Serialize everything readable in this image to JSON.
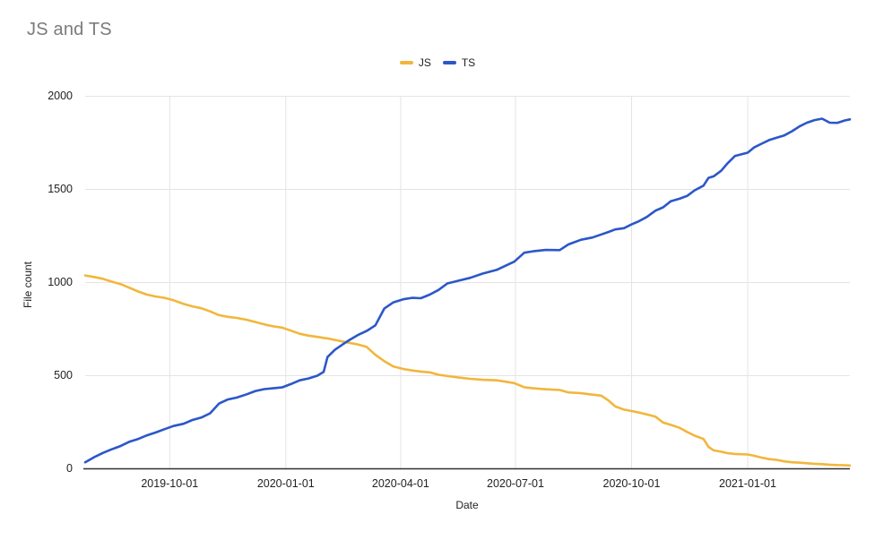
{
  "page": {
    "background": "#ffffff"
  },
  "chart_data": {
    "type": "line",
    "title": "JS and TS",
    "xlabel": "Date",
    "ylabel": "File count",
    "grid": true,
    "legend_position": "top-center",
    "ylim": [
      0,
      2000
    ],
    "y_ticks": [
      0,
      500,
      1000,
      1500,
      2000
    ],
    "x_tick_labels": [
      "2019-10-01",
      "2020-01-01",
      "2020-04-01",
      "2020-07-01",
      "2020-10-01",
      "2021-01-01"
    ],
    "x_range": [
      "2019-07-26",
      "2021-03-23"
    ],
    "colors": {
      "grid": "#e4e4e4",
      "axis": "#303030",
      "title": "#7b7b7b",
      "tick_text": "#222222"
    },
    "x": [
      "2019-07-26",
      "2019-08-02",
      "2019-08-09",
      "2019-08-16",
      "2019-08-23",
      "2019-08-30",
      "2019-09-06",
      "2019-09-13",
      "2019-09-20",
      "2019-09-27",
      "2019-10-04",
      "2019-10-12",
      "2019-10-19",
      "2019-10-26",
      "2019-11-02",
      "2019-11-09",
      "2019-11-16",
      "2019-11-23",
      "2019-12-01",
      "2019-12-08",
      "2019-12-15",
      "2019-12-22",
      "2019-12-29",
      "2020-01-05",
      "2020-01-12",
      "2020-01-19",
      "2020-01-26",
      "2020-01-31",
      "2020-02-03",
      "2020-02-09",
      "2020-02-16",
      "2020-02-20",
      "2020-02-27",
      "2020-03-05",
      "2020-03-12",
      "2020-03-19",
      "2020-03-26",
      "2020-04-03",
      "2020-04-10",
      "2020-04-17",
      "2020-04-24",
      "2020-05-01",
      "2020-05-08",
      "2020-05-17",
      "2020-05-26",
      "2020-06-05",
      "2020-06-16",
      "2020-06-23",
      "2020-06-30",
      "2020-07-08",
      "2020-07-15",
      "2020-07-25",
      "2020-08-05",
      "2020-08-12",
      "2020-08-22",
      "2020-08-31",
      "2020-09-07",
      "2020-09-13",
      "2020-09-18",
      "2020-09-25",
      "2020-10-01",
      "2020-10-07",
      "2020-10-13",
      "2020-10-20",
      "2020-10-26",
      "2020-11-01",
      "2020-11-08",
      "2020-11-14",
      "2020-11-20",
      "2020-11-27",
      "2020-12-01",
      "2020-12-05",
      "2020-12-11",
      "2020-12-16",
      "2020-12-22",
      "2021-01-01",
      "2021-01-06",
      "2021-01-12",
      "2021-01-18",
      "2021-01-24",
      "2021-01-30",
      "2021-02-05",
      "2021-02-11",
      "2021-02-17",
      "2021-02-23",
      "2021-03-01",
      "2021-03-07",
      "2021-03-13",
      "2021-03-19",
      "2021-03-23"
    ],
    "series": [
      {
        "name": "JS",
        "color": "#F2B63C",
        "values": [
          1038,
          1030,
          1020,
          1005,
          992,
          972,
          952,
          935,
          925,
          918,
          905,
          885,
          872,
          862,
          845,
          825,
          816,
          810,
          800,
          788,
          775,
          765,
          758,
          742,
          725,
          715,
          708,
          703,
          700,
          692,
          682,
          677,
          668,
          655,
          612,
          578,
          550,
          536,
          528,
          522,
          518,
          505,
          498,
          490,
          483,
          478,
          475,
          468,
          460,
          438,
          432,
          427,
          423,
          410,
          406,
          398,
          393,
          365,
          335,
          318,
          310,
          302,
          292,
          280,
          248,
          236,
          220,
          198,
          178,
          160,
          118,
          99,
          92,
          84,
          80,
          77,
          70,
          60,
          52,
          48,
          40,
          35,
          33,
          30,
          27,
          25,
          22,
          20,
          19,
          18
        ]
      },
      {
        "name": "TS",
        "color": "#2B57C8",
        "values": [
          35,
          62,
          85,
          105,
          122,
          145,
          160,
          180,
          195,
          213,
          230,
          242,
          262,
          275,
          298,
          350,
          372,
          382,
          400,
          418,
          428,
          432,
          437,
          455,
          475,
          485,
          500,
          520,
          600,
          640,
          672,
          690,
          718,
          740,
          770,
          860,
          893,
          910,
          918,
          916,
          935,
          960,
          995,
          1010,
          1025,
          1048,
          1068,
          1090,
          1112,
          1160,
          1168,
          1175,
          1174,
          1205,
          1230,
          1242,
          1258,
          1272,
          1285,
          1292,
          1312,
          1330,
          1352,
          1386,
          1404,
          1436,
          1450,
          1465,
          1495,
          1520,
          1562,
          1570,
          1600,
          1640,
          1680,
          1697,
          1725,
          1745,
          1765,
          1778,
          1790,
          1812,
          1838,
          1858,
          1872,
          1880,
          1858,
          1857,
          1870,
          1876
        ]
      }
    ]
  }
}
